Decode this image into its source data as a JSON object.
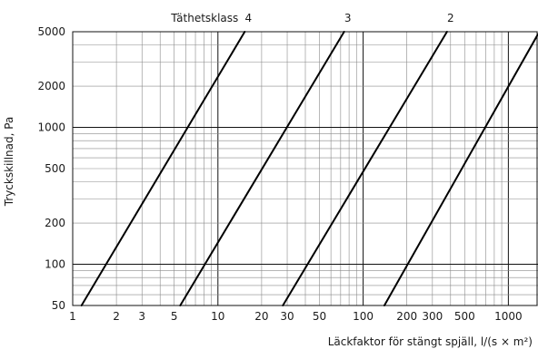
{
  "chart_data": {
    "type": "line",
    "x_scale": "log",
    "y_scale": "log",
    "xlabel": "Läckfaktor för stängt spjäll, l/(s × m²)",
    "ylabel": "Tryckskillnad, Pa",
    "xlim": [
      1,
      1600
    ],
    "ylim": [
      50,
      5000
    ],
    "x_ticks": [
      1,
      2,
      3,
      5,
      10,
      20,
      30,
      50,
      100,
      200,
      300,
      500,
      1000
    ],
    "x_tick_labels": [
      "1",
      "2",
      "3",
      "5",
      "10",
      "20",
      "30",
      "50",
      "100",
      "200",
      "300",
      "500",
      "1000"
    ],
    "y_ticks": [
      50,
      100,
      200,
      500,
      1000,
      2000,
      5000
    ],
    "y_tick_labels": [
      "50",
      "100",
      "200",
      "500",
      "1000",
      "2000",
      "5000"
    ],
    "legend_title": "Täthetsklass",
    "grid": true,
    "series": [
      {
        "name": "4",
        "points": [
          [
            1.15,
            50
          ],
          [
            15.3,
            5000
          ]
        ]
      },
      {
        "name": "3",
        "points": [
          [
            5.5,
            50
          ],
          [
            74,
            5000
          ]
        ]
      },
      {
        "name": "2",
        "points": [
          [
            28,
            50
          ],
          [
            378,
            5000
          ]
        ]
      },
      {
        "name": "",
        "points": [
          [
            140,
            50
          ],
          [
            1600,
            4800
          ]
        ]
      }
    ],
    "colors": {
      "line": "#000000",
      "grid": "#8a8a8a",
      "major_grid": "#111111"
    }
  }
}
